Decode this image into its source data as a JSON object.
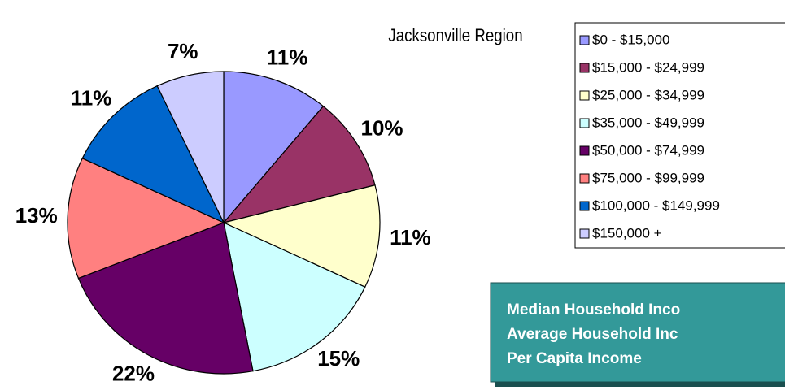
{
  "chart_data": {
    "type": "pie",
    "title": "Jacksonville Region",
    "categories": [
      "$0 - $15,000",
      "$15,000 - $24,999",
      "$25,000 - $34,999",
      "$35,000 - $49,999",
      "$50,000 - $74,999",
      "$75,000 - $99,999",
      "$100,000 - $149,999",
      "$150,000 +"
    ],
    "values": [
      11,
      10,
      11,
      15,
      22,
      13,
      11,
      7
    ],
    "value_labels": [
      "11%",
      "10%",
      "11%",
      "15%",
      "22%",
      "13%",
      "11%",
      "7%"
    ],
    "colors": [
      "#9999ff",
      "#993366",
      "#ffffcc",
      "#ccffff",
      "#660066",
      "#ff8080",
      "#0066cc",
      "#ccccff"
    ]
  },
  "info_box": {
    "lines": [
      "Median Household Inco",
      "Average Household Inc",
      "Per Capita Income"
    ]
  }
}
